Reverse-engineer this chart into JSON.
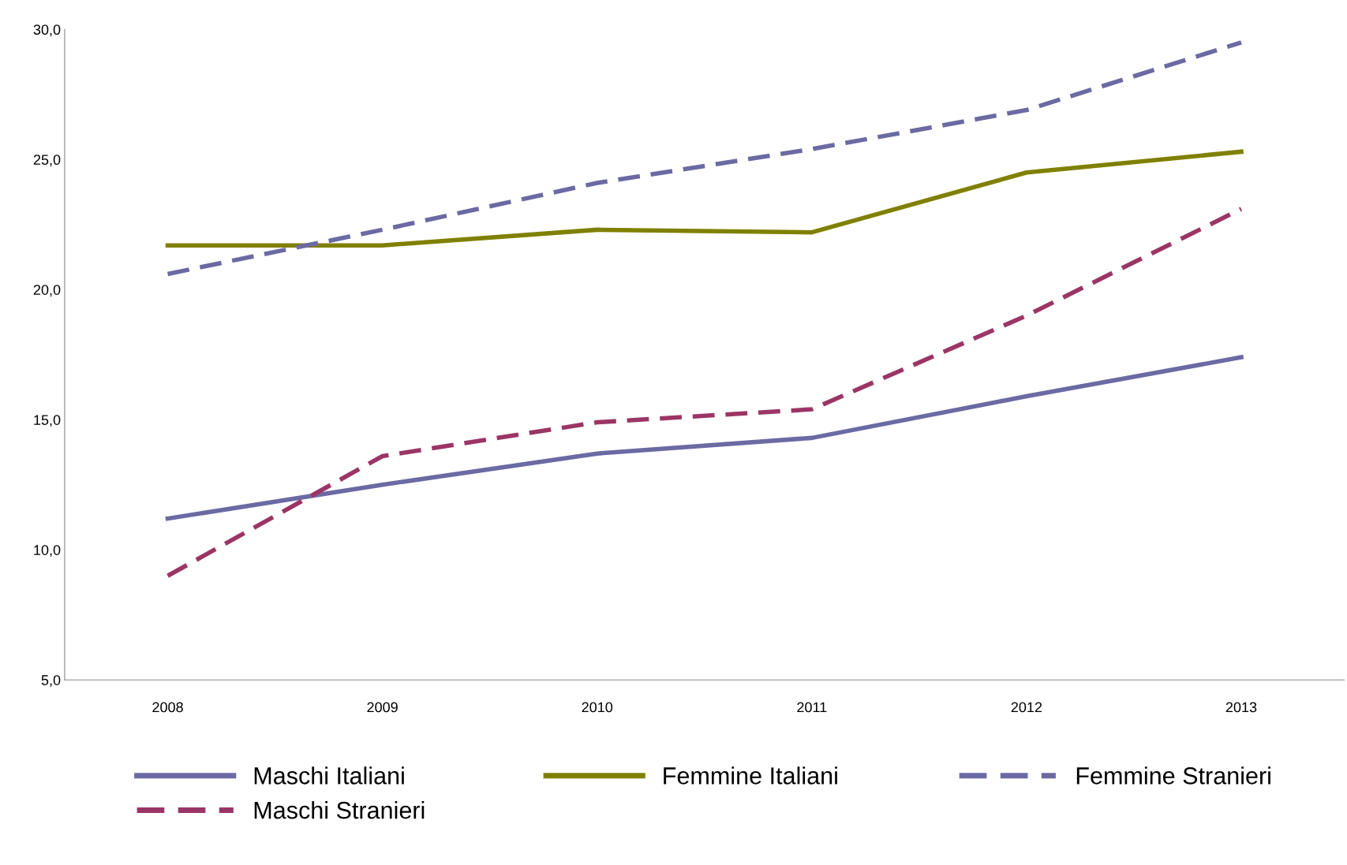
{
  "chart_data": {
    "type": "line",
    "categories": [
      "2008",
      "2009",
      "2010",
      "2011",
      "2012",
      "2013"
    ],
    "ylim": [
      5,
      30
    ],
    "yticks": [
      {
        "value": 5,
        "label": "5,0"
      },
      {
        "value": 10,
        "label": "10,0"
      },
      {
        "value": 15,
        "label": "15,0"
      },
      {
        "value": 20,
        "label": "20,0"
      },
      {
        "value": 25,
        "label": "25,0"
      },
      {
        "value": 30,
        "label": "30,0"
      }
    ],
    "grid": false,
    "legend": "bottom",
    "marker": "none",
    "series": [
      {
        "name": "Maschi Italiani",
        "color": "#6b6aa3",
        "line_style": "solid",
        "values": [
          11.2,
          12.5,
          13.7,
          14.3,
          15.9,
          17.4
        ]
      },
      {
        "name": "Maschi Stranieri",
        "color": "#9b3565",
        "line_style": "dashed",
        "values": [
          9.0,
          13.6,
          14.9,
          15.4,
          19.0,
          23.1
        ]
      },
      {
        "name": "Femmine Italiani",
        "color": "#808000",
        "line_style": "solid",
        "values": [
          21.7,
          21.7,
          22.3,
          22.2,
          24.5,
          25.3
        ]
      },
      {
        "name": "Femmine Stranieri",
        "color": "#6b6aa3",
        "line_style": "dashed",
        "values": [
          20.6,
          22.3,
          24.1,
          25.4,
          26.9,
          29.5
        ]
      }
    ]
  }
}
